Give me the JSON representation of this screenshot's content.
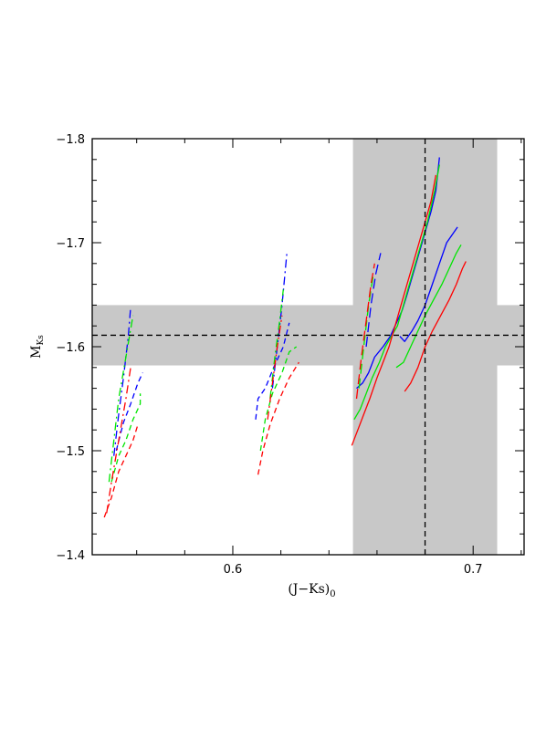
{
  "chart_data": {
    "type": "line",
    "title": "",
    "xlabel": {
      "main": "(J−Ks)",
      "sub": "0"
    },
    "ylabel": {
      "main": "M",
      "sub": "Ks"
    },
    "xlim": [
      0.5415,
      0.7212
    ],
    "ylim": [
      -1.4,
      -1.8
    ],
    "y_inverted": true,
    "grid": false,
    "legend": "none",
    "x_ticks": [
      {
        "value": 0.6,
        "label": "0.6"
      },
      {
        "value": 0.7,
        "label": "0.7"
      }
    ],
    "y_ticks": [
      {
        "value": -1.8,
        "label": "−1.8"
      },
      {
        "value": -1.7,
        "label": "−1.7"
      },
      {
        "value": -1.6,
        "label": "−1.6"
      },
      {
        "value": -1.5,
        "label": "−1.5"
      },
      {
        "value": -1.4,
        "label": "−1.4"
      }
    ],
    "colors": {
      "blue": "#0000ff",
      "green": "#00e600",
      "red": "#ff0000",
      "band": "#c8c8c8",
      "axis": "#000000"
    },
    "reference": {
      "x_value": 0.68,
      "x_band": [
        0.65,
        0.71
      ],
      "y_value": -1.611,
      "y_band": [
        -1.582,
        -1.64
      ]
    },
    "series": [
      {
        "color": "blue",
        "dash": "dashdot",
        "points": [
          [
            0.5505,
            -1.495
          ],
          [
            0.5525,
            -1.535
          ],
          [
            0.5545,
            -1.57
          ],
          [
            0.5565,
            -1.61
          ],
          [
            0.5575,
            -1.638
          ]
        ]
      },
      {
        "color": "blue",
        "dash": "dashed",
        "points": [
          [
            0.5515,
            -1.5
          ],
          [
            0.5545,
            -1.527
          ],
          [
            0.5575,
            -1.545
          ],
          [
            0.5605,
            -1.565
          ],
          [
            0.5625,
            -1.575
          ]
        ]
      },
      {
        "color": "green",
        "dash": "dashdot",
        "points": [
          [
            0.5485,
            -1.47
          ],
          [
            0.5505,
            -1.51
          ],
          [
            0.5525,
            -1.55
          ],
          [
            0.5555,
            -1.59
          ],
          [
            0.5585,
            -1.63
          ]
        ]
      },
      {
        "color": "green",
        "dash": "dashed",
        "points": [
          [
            0.5495,
            -1.47
          ],
          [
            0.5525,
            -1.495
          ],
          [
            0.5555,
            -1.51
          ],
          [
            0.5585,
            -1.53
          ],
          [
            0.5615,
            -1.545
          ],
          [
            0.5615,
            -1.555
          ]
        ]
      },
      {
        "color": "red",
        "dash": "dashdot",
        "points": [
          [
            0.5475,
            -1.44
          ],
          [
            0.5495,
            -1.47
          ],
          [
            0.5525,
            -1.51
          ],
          [
            0.5555,
            -1.55
          ],
          [
            0.5575,
            -1.58
          ]
        ]
      },
      {
        "color": "red",
        "dash": "dashed",
        "points": [
          [
            0.5465,
            -1.436
          ],
          [
            0.5495,
            -1.455
          ],
          [
            0.5525,
            -1.48
          ],
          [
            0.5555,
            -1.495
          ],
          [
            0.5585,
            -1.51
          ],
          [
            0.5605,
            -1.525
          ]
        ]
      },
      {
        "color": "blue",
        "dash": "dashdot",
        "points": [
          [
            0.6165,
            -1.56
          ],
          [
            0.6185,
            -1.6
          ],
          [
            0.6205,
            -1.64
          ],
          [
            0.6225,
            -1.69
          ]
        ]
      },
      {
        "color": "blue",
        "dash": "dashed",
        "points": [
          [
            0.6095,
            -1.53
          ],
          [
            0.6105,
            -1.55
          ],
          [
            0.6135,
            -1.56
          ],
          [
            0.617,
            -1.58
          ],
          [
            0.621,
            -1.6
          ],
          [
            0.6235,
            -1.623
          ]
        ]
      },
      {
        "color": "green",
        "dash": "dashdot",
        "points": [
          [
            0.6155,
            -1.55
          ],
          [
            0.6175,
            -1.59
          ],
          [
            0.6195,
            -1.625
          ],
          [
            0.621,
            -1.655
          ]
        ]
      },
      {
        "color": "green",
        "dash": "dashed",
        "points": [
          [
            0.6115,
            -1.5
          ],
          [
            0.6135,
            -1.53
          ],
          [
            0.6165,
            -1.555
          ],
          [
            0.6205,
            -1.575
          ],
          [
            0.6235,
            -1.595
          ],
          [
            0.6265,
            -1.6
          ]
        ]
      },
      {
        "color": "red",
        "dash": "dashdot",
        "points": [
          [
            0.6145,
            -1.53
          ],
          [
            0.6165,
            -1.565
          ],
          [
            0.6185,
            -1.6
          ],
          [
            0.6205,
            -1.63
          ]
        ]
      },
      {
        "color": "red",
        "dash": "dashed",
        "points": [
          [
            0.6105,
            -1.477
          ],
          [
            0.6125,
            -1.5
          ],
          [
            0.6155,
            -1.525
          ],
          [
            0.6195,
            -1.55
          ],
          [
            0.6235,
            -1.57
          ],
          [
            0.6275,
            -1.585
          ]
        ]
      },
      {
        "color": "blue",
        "dash": "longdash",
        "points": [
          [
            0.6555,
            -1.6
          ],
          [
            0.6575,
            -1.64
          ],
          [
            0.6595,
            -1.67
          ],
          [
            0.6615,
            -1.69
          ]
        ]
      },
      {
        "color": "blue",
        "dash": "solid",
        "points": [
          [
            0.6515,
            -1.56
          ],
          [
            0.654,
            -1.565
          ],
          [
            0.6565,
            -1.575
          ],
          [
            0.659,
            -1.59
          ],
          [
            0.6625,
            -1.6
          ],
          [
            0.6655,
            -1.61
          ],
          [
            0.6675,
            -1.62
          ],
          [
            0.6705,
            -1.635
          ],
          [
            0.6725,
            -1.65
          ],
          [
            0.675,
            -1.67
          ],
          [
            0.6775,
            -1.69
          ],
          [
            0.68,
            -1.71
          ],
          [
            0.6825,
            -1.73
          ],
          [
            0.6845,
            -1.75
          ],
          [
            0.686,
            -1.782
          ]
        ]
      },
      {
        "color": "green",
        "dash": "longdash",
        "points": [
          [
            0.6525,
            -1.56
          ],
          [
            0.6545,
            -1.6
          ],
          [
            0.6565,
            -1.64
          ],
          [
            0.6585,
            -1.67
          ]
        ]
      },
      {
        "color": "green",
        "dash": "solid",
        "points": [
          [
            0.6505,
            -1.53
          ],
          [
            0.653,
            -1.54
          ],
          [
            0.6555,
            -1.555
          ],
          [
            0.658,
            -1.57
          ],
          [
            0.661,
            -1.585
          ],
          [
            0.6635,
            -1.6
          ],
          [
            0.666,
            -1.61
          ],
          [
            0.6685,
            -1.62
          ],
          [
            0.671,
            -1.64
          ],
          [
            0.6735,
            -1.66
          ],
          [
            0.676,
            -1.68
          ],
          [
            0.6785,
            -1.7
          ],
          [
            0.681,
            -1.72
          ],
          [
            0.684,
            -1.75
          ],
          [
            0.686,
            -1.775
          ]
        ]
      },
      {
        "color": "red",
        "dash": "longdash",
        "points": [
          [
            0.6515,
            -1.55
          ],
          [
            0.6535,
            -1.59
          ],
          [
            0.6555,
            -1.625
          ],
          [
            0.6575,
            -1.66
          ],
          [
            0.659,
            -1.68
          ]
        ]
      },
      {
        "color": "red",
        "dash": "solid",
        "points": [
          [
            0.6495,
            -1.505
          ],
          [
            0.652,
            -1.52
          ],
          [
            0.6545,
            -1.535
          ],
          [
            0.657,
            -1.55
          ],
          [
            0.66,
            -1.57
          ],
          [
            0.6625,
            -1.585
          ],
          [
            0.665,
            -1.6
          ],
          [
            0.6675,
            -1.62
          ],
          [
            0.67,
            -1.64
          ],
          [
            0.6725,
            -1.66
          ],
          [
            0.675,
            -1.68
          ],
          [
            0.6775,
            -1.7
          ],
          [
            0.68,
            -1.72
          ],
          [
            0.6825,
            -1.74
          ],
          [
            0.6845,
            -1.765
          ]
        ]
      },
      {
        "color": "blue",
        "dash": "solid",
        "points": [
          [
            0.6695,
            -1.61
          ],
          [
            0.6715,
            -1.605
          ],
          [
            0.6745,
            -1.615
          ],
          [
            0.677,
            -1.625
          ],
          [
            0.68,
            -1.64
          ],
          [
            0.683,
            -1.66
          ],
          [
            0.686,
            -1.68
          ],
          [
            0.689,
            -1.7
          ],
          [
            0.692,
            -1.71
          ],
          [
            0.6935,
            -1.715
          ]
        ]
      },
      {
        "color": "green",
        "dash": "solid",
        "points": [
          [
            0.668,
            -1.58
          ],
          [
            0.671,
            -1.585
          ],
          [
            0.674,
            -1.6
          ],
          [
            0.677,
            -1.615
          ],
          [
            0.68,
            -1.63
          ],
          [
            0.6835,
            -1.645
          ],
          [
            0.687,
            -1.66
          ],
          [
            0.69,
            -1.675
          ],
          [
            0.693,
            -1.69
          ],
          [
            0.695,
            -1.698
          ]
        ]
      },
      {
        "color": "red",
        "dash": "solid",
        "points": [
          [
            0.6715,
            -1.557
          ],
          [
            0.674,
            -1.565
          ],
          [
            0.677,
            -1.58
          ],
          [
            0.68,
            -1.6
          ],
          [
            0.683,
            -1.615
          ],
          [
            0.6865,
            -1.63
          ],
          [
            0.69,
            -1.645
          ],
          [
            0.693,
            -1.66
          ],
          [
            0.6955,
            -1.675
          ],
          [
            0.697,
            -1.682
          ]
        ]
      }
    ]
  }
}
